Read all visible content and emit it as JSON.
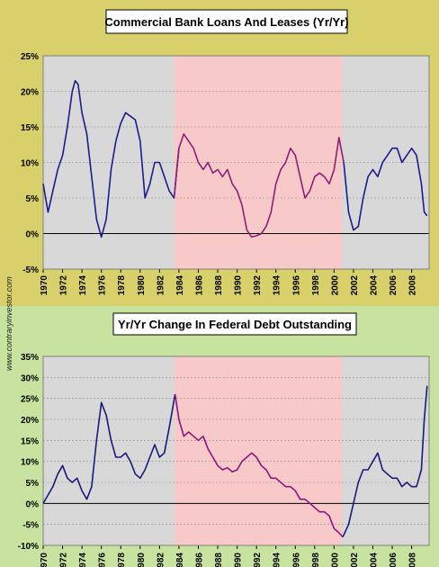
{
  "watermark": "www.contraryinvestor.com",
  "colors": {
    "top_panel_bg": "#d8d06a",
    "bottom_panel_bg": "#c8e3a0",
    "plot_bg": "#ffffff",
    "shade_gray": "#b8b8b8",
    "shade_pink": "#f6b7b7",
    "top_line_blue": "#1c1c8c",
    "top_line_purple": "#8b1f78",
    "bottom_line_blue": "#1a1a7a",
    "bottom_line_purple": "#8b1480"
  },
  "chart_data": [
    {
      "type": "line",
      "title": "Commercial Bank Loans And Leases (Yr/Yr)",
      "xlim": [
        1970,
        2009.8
      ],
      "ylim": [
        -5,
        25
      ],
      "yticks": [
        "25%",
        "20%",
        "15%",
        "10%",
        "5%",
        "0%",
        "-5%"
      ],
      "ytick_values": [
        25,
        20,
        15,
        10,
        5,
        0,
        -5
      ],
      "xticks": [
        "1970",
        "1972",
        "1974",
        "1976",
        "1978",
        "1980",
        "1982",
        "1984",
        "1986",
        "1988",
        "1990",
        "1992",
        "1994",
        "1996",
        "1998",
        "2000",
        "2002",
        "2004",
        "2006",
        "2008"
      ],
      "xtick_values": [
        1970,
        1972,
        1974,
        1976,
        1978,
        1980,
        1982,
        1984,
        1986,
        1988,
        1990,
        1992,
        1994,
        1996,
        1998,
        2000,
        2002,
        2004,
        2006,
        2008
      ],
      "grid": true,
      "shaded_periods": [
        {
          "start": 1970,
          "end": 1983.5,
          "color": "gray"
        },
        {
          "start": 1983.5,
          "end": 2000.8,
          "color": "pink"
        },
        {
          "start": 2000.8,
          "end": 2009.8,
          "color": "gray"
        }
      ],
      "series": [
        {
          "color_segments": [
            {
              "until": 1983.5,
              "color": "blue"
            },
            {
              "until": 2000.8,
              "color": "purple"
            },
            {
              "until": 2009.8,
              "color": "blue"
            }
          ],
          "x": [
            1970.0,
            1970.5,
            1971.0,
            1971.5,
            1972.0,
            1972.5,
            1973.0,
            1973.3,
            1973.6,
            1974.0,
            1974.5,
            1975.0,
            1975.5,
            1976.0,
            1976.5,
            1977.0,
            1977.5,
            1978.0,
            1978.5,
            1979.0,
            1979.5,
            1980.0,
            1980.5,
            1981.0,
            1981.5,
            1982.0,
            1982.5,
            1983.0,
            1983.5,
            1984.0,
            1984.5,
            1985.0,
            1985.5,
            1986.0,
            1986.5,
            1987.0,
            1987.5,
            1988.0,
            1988.5,
            1989.0,
            1989.5,
            1990.0,
            1990.5,
            1991.0,
            1991.5,
            1992.0,
            1992.5,
            1993.0,
            1993.5,
            1994.0,
            1994.5,
            1995.0,
            1995.5,
            1996.0,
            1996.5,
            1997.0,
            1997.5,
            1998.0,
            1998.5,
            1999.0,
            1999.5,
            2000.0,
            2000.5,
            2001.0,
            2001.5,
            2002.0,
            2002.5,
            2003.0,
            2003.5,
            2004.0,
            2004.5,
            2005.0,
            2005.5,
            2006.0,
            2006.5,
            2007.0,
            2007.5,
            2008.0,
            2008.5,
            2009.0,
            2009.3,
            2009.6
          ],
          "values": [
            7,
            3,
            6,
            9,
            11,
            15,
            20,
            21.5,
            21,
            17,
            14,
            8,
            2,
            -0.5,
            2,
            9,
            13,
            15.5,
            17,
            16.5,
            16,
            13,
            5,
            7,
            10,
            10,
            8,
            6,
            5,
            12,
            14,
            13,
            12,
            10,
            9,
            10,
            8.5,
            9,
            8,
            9,
            7,
            6,
            4,
            0.5,
            -0.5,
            -0.3,
            0,
            1,
            3,
            7,
            9,
            10,
            12,
            11,
            8,
            5,
            6,
            8,
            8.5,
            8,
            7,
            9,
            13.5,
            10,
            3,
            0.5,
            1,
            5,
            8,
            9,
            8,
            10,
            11,
            12,
            12,
            10,
            11,
            12,
            11,
            7,
            3,
            2.5
          ]
        }
      ]
    },
    {
      "type": "line",
      "title": "Yr/Yr Change In Federal Debt Outstanding",
      "xlim": [
        1970,
        2009.8
      ],
      "ylim": [
        -10,
        35
      ],
      "yticks": [
        "35%",
        "30%",
        "25%",
        "20%",
        "15%",
        "10%",
        "5%",
        "0%",
        "-5%",
        "-10%"
      ],
      "ytick_values": [
        35,
        30,
        25,
        20,
        15,
        10,
        5,
        0,
        -5,
        -10
      ],
      "xticks": [
        "1970",
        "1972",
        "1974",
        "1976",
        "1978",
        "1980",
        "1982",
        "1984",
        "1986",
        "1988",
        "1990",
        "1992",
        "1994",
        "1996",
        "1998",
        "2000",
        "2002",
        "2004",
        "2006",
        "2008"
      ],
      "xtick_values": [
        1970,
        1972,
        1974,
        1976,
        1978,
        1980,
        1982,
        1984,
        1986,
        1988,
        1990,
        1992,
        1994,
        1996,
        1998,
        2000,
        2002,
        2004,
        2006,
        2008
      ],
      "grid": true,
      "shaded_periods": [
        {
          "start": 1970,
          "end": 1983.5,
          "color": "gray"
        },
        {
          "start": 1983.5,
          "end": 2000.8,
          "color": "pink"
        },
        {
          "start": 2000.8,
          "end": 2009.8,
          "color": "gray"
        }
      ],
      "series": [
        {
          "color_segments": [
            {
              "until": 1983.5,
              "color": "blue"
            },
            {
              "until": 2000.8,
              "color": "purple"
            },
            {
              "until": 2009.8,
              "color": "blue"
            }
          ],
          "x": [
            1970.0,
            1970.5,
            1971.0,
            1971.5,
            1972.0,
            1972.5,
            1973.0,
            1973.5,
            1974.0,
            1974.5,
            1975.0,
            1975.5,
            1976.0,
            1976.5,
            1977.0,
            1977.5,
            1978.0,
            1978.5,
            1979.0,
            1979.5,
            1980.0,
            1980.5,
            1981.0,
            1981.5,
            1982.0,
            1982.5,
            1983.0,
            1983.3,
            1983.6,
            1984.0,
            1984.5,
            1985.0,
            1985.5,
            1986.0,
            1986.5,
            1987.0,
            1987.5,
            1988.0,
            1988.5,
            1989.0,
            1989.5,
            1990.0,
            1990.5,
            1991.0,
            1991.5,
            1992.0,
            1992.5,
            1993.0,
            1993.5,
            1994.0,
            1994.5,
            1995.0,
            1995.5,
            1996.0,
            1996.5,
            1997.0,
            1997.5,
            1998.0,
            1998.5,
            1999.0,
            1999.5,
            2000.0,
            2000.5,
            2000.9,
            2001.5,
            2002.0,
            2002.5,
            2003.0,
            2003.5,
            2004.0,
            2004.5,
            2005.0,
            2005.5,
            2006.0,
            2006.5,
            2007.0,
            2007.5,
            2008.0,
            2008.5,
            2009.0,
            2009.3,
            2009.6
          ],
          "values": [
            0,
            2,
            4,
            7,
            9,
            6,
            5,
            6,
            3,
            1,
            4,
            15,
            24,
            21,
            15,
            11,
            11,
            12,
            10,
            7,
            6,
            8,
            11,
            14,
            11,
            12,
            18,
            22,
            26,
            20,
            16,
            17,
            16,
            15,
            16,
            13,
            11,
            9,
            8,
            8.5,
            7.5,
            8,
            10,
            11,
            12,
            11,
            9,
            8,
            6,
            6,
            5,
            4,
            4,
            3,
            1,
            1,
            0,
            -1,
            -2,
            -2,
            -3,
            -6,
            -7,
            -8,
            -5,
            0,
            5,
            8,
            8,
            10,
            12,
            8,
            7,
            6,
            6,
            4,
            5,
            4,
            4,
            8,
            20,
            28
          ]
        }
      ]
    }
  ]
}
